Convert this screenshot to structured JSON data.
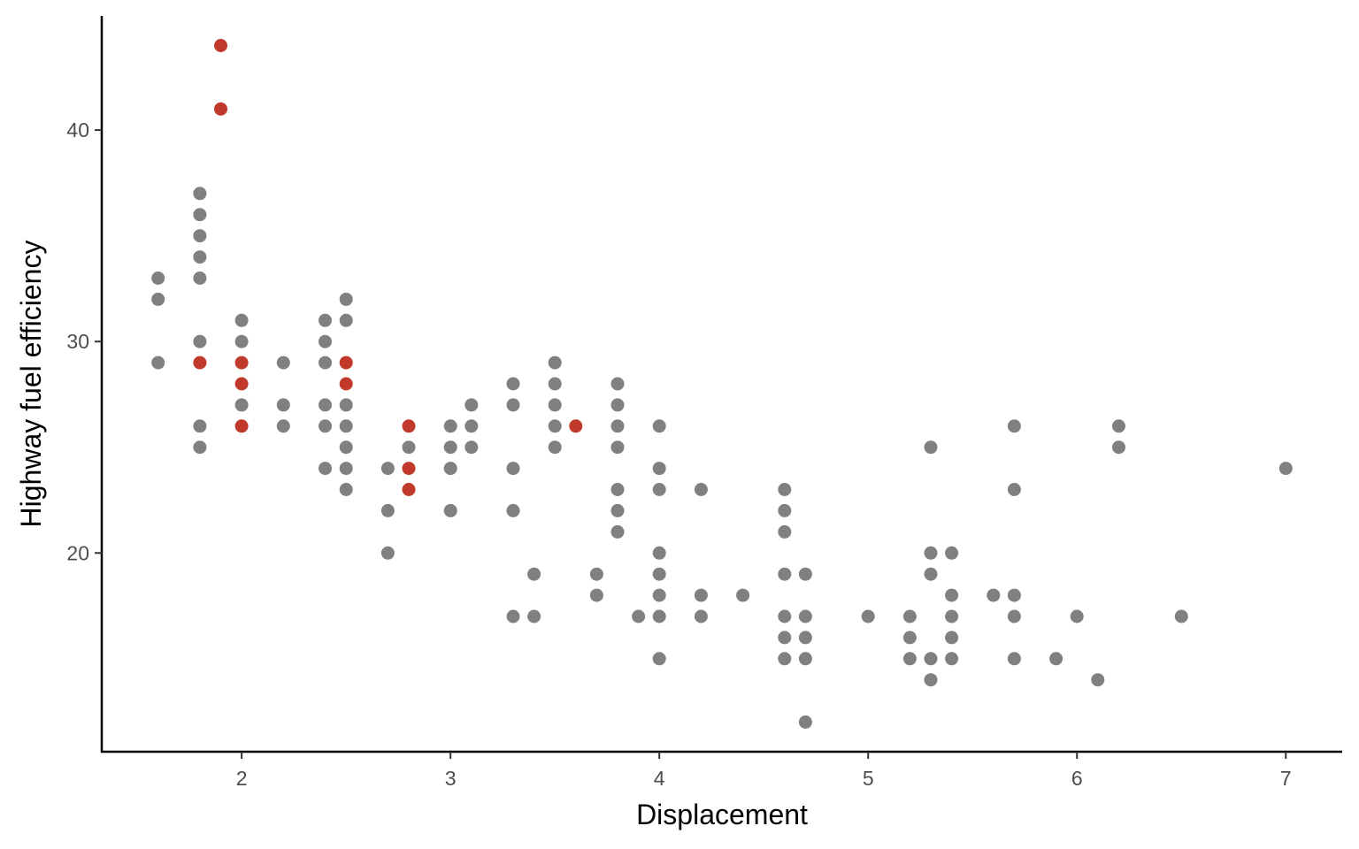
{
  "chart_data": {
    "type": "scatter",
    "title": "",
    "xlabel": "Displacement",
    "ylabel": "Highway fuel efficiency",
    "xlim": [
      1.33,
      7.27
    ],
    "ylim": [
      10.6,
      45.4
    ],
    "x_ticks": [
      2,
      3,
      4,
      5,
      6,
      7
    ],
    "y_ticks": [
      20,
      30,
      40
    ],
    "grid": false,
    "legend": "none",
    "colors": {
      "base": "#808080",
      "highlight": "#C0392B"
    },
    "series": [
      {
        "highlight": false,
        "points": [
          [
            1.6,
            33
          ],
          [
            1.6,
            32
          ],
          [
            1.6,
            29
          ],
          [
            1.8,
            37
          ],
          [
            1.8,
            36
          ],
          [
            1.8,
            35
          ],
          [
            1.8,
            34
          ],
          [
            1.8,
            33
          ],
          [
            1.8,
            30
          ],
          [
            1.8,
            26
          ],
          [
            1.8,
            25
          ],
          [
            2.0,
            31
          ],
          [
            2.0,
            30
          ],
          [
            2.0,
            27
          ],
          [
            2.2,
            29
          ],
          [
            2.2,
            27
          ],
          [
            2.2,
            26
          ],
          [
            2.4,
            31
          ],
          [
            2.4,
            30
          ],
          [
            2.4,
            29
          ],
          [
            2.4,
            27
          ],
          [
            2.4,
            26
          ],
          [
            2.4,
            24
          ],
          [
            2.5,
            32
          ],
          [
            2.5,
            31
          ],
          [
            2.5,
            27
          ],
          [
            2.5,
            26
          ],
          [
            2.5,
            25
          ],
          [
            2.5,
            24
          ],
          [
            2.5,
            23
          ],
          [
            2.7,
            24
          ],
          [
            2.7,
            22
          ],
          [
            2.7,
            20
          ],
          [
            2.8,
            25
          ],
          [
            3.0,
            26
          ],
          [
            3.0,
            25
          ],
          [
            3.0,
            24
          ],
          [
            3.0,
            22
          ],
          [
            3.1,
            27
          ],
          [
            3.1,
            26
          ],
          [
            3.1,
            25
          ],
          [
            3.3,
            28
          ],
          [
            3.3,
            27
          ],
          [
            3.3,
            24
          ],
          [
            3.3,
            22
          ],
          [
            3.3,
            17
          ],
          [
            3.4,
            19
          ],
          [
            3.4,
            17
          ],
          [
            3.5,
            29
          ],
          [
            3.5,
            28
          ],
          [
            3.5,
            27
          ],
          [
            3.5,
            26
          ],
          [
            3.5,
            25
          ],
          [
            3.7,
            19
          ],
          [
            3.7,
            18
          ],
          [
            3.8,
            28
          ],
          [
            3.8,
            27
          ],
          [
            3.8,
            26
          ],
          [
            3.8,
            25
          ],
          [
            3.8,
            23
          ],
          [
            3.8,
            22
          ],
          [
            3.8,
            21
          ],
          [
            3.9,
            17
          ],
          [
            4.0,
            26
          ],
          [
            4.0,
            24
          ],
          [
            4.0,
            23
          ],
          [
            4.0,
            20
          ],
          [
            4.0,
            19
          ],
          [
            4.0,
            18
          ],
          [
            4.0,
            17
          ],
          [
            4.0,
            15
          ],
          [
            4.2,
            23
          ],
          [
            4.2,
            18
          ],
          [
            4.2,
            17
          ],
          [
            4.4,
            18
          ],
          [
            4.6,
            23
          ],
          [
            4.6,
            22
          ],
          [
            4.6,
            21
          ],
          [
            4.6,
            19
          ],
          [
            4.6,
            17
          ],
          [
            4.6,
            16
          ],
          [
            4.6,
            15
          ],
          [
            4.7,
            19
          ],
          [
            4.7,
            17
          ],
          [
            4.7,
            16
          ],
          [
            4.7,
            15
          ],
          [
            4.7,
            12
          ],
          [
            5.0,
            17
          ],
          [
            5.2,
            17
          ],
          [
            5.2,
            16
          ],
          [
            5.2,
            15
          ],
          [
            5.3,
            25
          ],
          [
            5.3,
            20
          ],
          [
            5.3,
            19
          ],
          [
            5.3,
            15
          ],
          [
            5.3,
            14
          ],
          [
            5.4,
            20
          ],
          [
            5.4,
            18
          ],
          [
            5.4,
            17
          ],
          [
            5.4,
            16
          ],
          [
            5.4,
            15
          ],
          [
            5.6,
            18
          ],
          [
            5.7,
            26
          ],
          [
            5.7,
            23
          ],
          [
            5.7,
            18
          ],
          [
            5.7,
            17
          ],
          [
            5.7,
            15
          ],
          [
            5.9,
            15
          ],
          [
            6.0,
            17
          ],
          [
            6.1,
            14
          ],
          [
            6.2,
            26
          ],
          [
            6.2,
            25
          ],
          [
            6.5,
            17
          ],
          [
            7.0,
            24
          ]
        ]
      },
      {
        "highlight": true,
        "points": [
          [
            1.9,
            44
          ],
          [
            1.9,
            41
          ],
          [
            1.8,
            29
          ],
          [
            2.0,
            29
          ],
          [
            2.0,
            28
          ],
          [
            2.0,
            26
          ],
          [
            2.5,
            29
          ],
          [
            2.5,
            28
          ],
          [
            2.8,
            26
          ],
          [
            2.8,
            24
          ],
          [
            2.8,
            23
          ],
          [
            3.6,
            26
          ]
        ]
      }
    ]
  }
}
